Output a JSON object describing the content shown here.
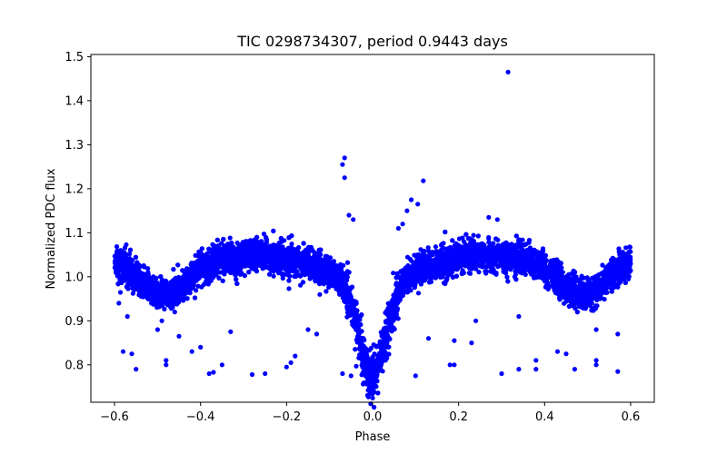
{
  "chart_data": {
    "type": "scatter",
    "title": "TIC 0298734307, period 0.9443 days",
    "xlabel": "Phase",
    "ylabel": "Normalized PDC flux",
    "xlim": [
      -0.655,
      0.655
    ],
    "ylim": [
      0.715,
      1.505
    ],
    "xticks": [
      -0.6,
      -0.4,
      -0.2,
      0.0,
      0.2,
      0.4,
      0.6
    ],
    "xtick_labels": [
      "−0.6",
      "−0.4",
      "−0.2",
      "0.0",
      "0.2",
      "0.4",
      "0.6"
    ],
    "yticks": [
      0.8,
      0.9,
      1.0,
      1.1,
      1.2,
      1.3,
      1.4,
      1.5
    ],
    "ytick_labels": [
      "0.8",
      "0.9",
      "1.0",
      "1.1",
      "1.2",
      "1.3",
      "1.4",
      "1.5"
    ],
    "grid": false,
    "color": "#0000ff",
    "model": {
      "x": [
        -0.6,
        -0.55,
        -0.5,
        -0.45,
        -0.4,
        -0.35,
        -0.3,
        -0.25,
        -0.2,
        -0.15,
        -0.1,
        -0.07,
        -0.05,
        -0.03,
        -0.015,
        0.0,
        0.015,
        0.03,
        0.05,
        0.07,
        0.1,
        0.15,
        0.2,
        0.25,
        0.3,
        0.35,
        0.4,
        0.45,
        0.5,
        0.55,
        0.6
      ],
      "y": [
        1.035,
        1.0,
        0.955,
        0.97,
        1.02,
        1.04,
        1.045,
        1.05,
        1.04,
        1.03,
        1.01,
        0.985,
        0.94,
        0.86,
        0.8,
        0.77,
        0.8,
        0.86,
        0.94,
        0.99,
        1.01,
        1.03,
        1.045,
        1.05,
        1.045,
        1.04,
        1.02,
        0.975,
        0.955,
        1.0,
        1.035
      ],
      "spread": 0.035,
      "n_points": 9000
    },
    "outliers": [
      {
        "x": 0.315,
        "y": 1.465
      },
      {
        "x": -0.065,
        "y": 1.27
      },
      {
        "x": -0.07,
        "y": 1.255
      },
      {
        "x": -0.065,
        "y": 1.225
      },
      {
        "x": 0.118,
        "y": 1.218
      },
      {
        "x": 0.105,
        "y": 1.165
      },
      {
        "x": 0.09,
        "y": 1.175
      },
      {
        "x": 0.08,
        "y": 1.15
      },
      {
        "x": 0.07,
        "y": 1.12
      },
      {
        "x": -0.055,
        "y": 1.14
      },
      {
        "x": -0.045,
        "y": 1.13
      },
      {
        "x": 0.06,
        "y": 1.11
      },
      {
        "x": 0.27,
        "y": 1.135
      },
      {
        "x": 0.29,
        "y": 1.13
      },
      {
        "x": -0.55,
        "y": 0.79
      },
      {
        "x": -0.58,
        "y": 0.83
      },
      {
        "x": -0.56,
        "y": 0.825
      },
      {
        "x": -0.48,
        "y": 0.81
      },
      {
        "x": -0.48,
        "y": 0.8
      },
      {
        "x": -0.38,
        "y": 0.78
      },
      {
        "x": -0.37,
        "y": 0.783
      },
      {
        "x": -0.35,
        "y": 0.8
      },
      {
        "x": -0.28,
        "y": 0.778
      },
      {
        "x": -0.25,
        "y": 0.78
      },
      {
        "x": -0.2,
        "y": 0.795
      },
      {
        "x": -0.19,
        "y": 0.805
      },
      {
        "x": -0.18,
        "y": 0.82
      },
      {
        "x": -0.07,
        "y": 0.78
      },
      {
        "x": -0.05,
        "y": 0.775
      },
      {
        "x": 0.1,
        "y": 0.775
      },
      {
        "x": 0.18,
        "y": 0.8
      },
      {
        "x": 0.19,
        "y": 0.8
      },
      {
        "x": 0.3,
        "y": 0.78
      },
      {
        "x": 0.34,
        "y": 0.79
      },
      {
        "x": 0.38,
        "y": 0.81
      },
      {
        "x": 0.38,
        "y": 0.79
      },
      {
        "x": 0.43,
        "y": 0.83
      },
      {
        "x": 0.45,
        "y": 0.825
      },
      {
        "x": 0.47,
        "y": 0.79
      },
      {
        "x": 0.52,
        "y": 0.81
      },
      {
        "x": 0.52,
        "y": 0.8
      },
      {
        "x": 0.57,
        "y": 0.785
      },
      {
        "x": -0.4,
        "y": 0.84
      },
      {
        "x": -0.42,
        "y": 0.83
      },
      {
        "x": -0.5,
        "y": 0.88
      },
      {
        "x": -0.45,
        "y": 0.865
      },
      {
        "x": -0.33,
        "y": 0.875
      },
      {
        "x": -0.15,
        "y": 0.88
      },
      {
        "x": -0.13,
        "y": 0.87
      },
      {
        "x": 0.13,
        "y": 0.86
      },
      {
        "x": 0.19,
        "y": 0.855
      },
      {
        "x": 0.23,
        "y": 0.85
      },
      {
        "x": 0.24,
        "y": 0.9
      },
      {
        "x": 0.34,
        "y": 0.91
      },
      {
        "x": 0.52,
        "y": 0.88
      },
      {
        "x": 0.57,
        "y": 0.87
      },
      {
        "x": -0.59,
        "y": 0.94
      },
      {
        "x": -0.57,
        "y": 0.91
      },
      {
        "x": -0.49,
        "y": 0.9
      },
      {
        "x": -0.46,
        "y": 0.92
      }
    ]
  }
}
